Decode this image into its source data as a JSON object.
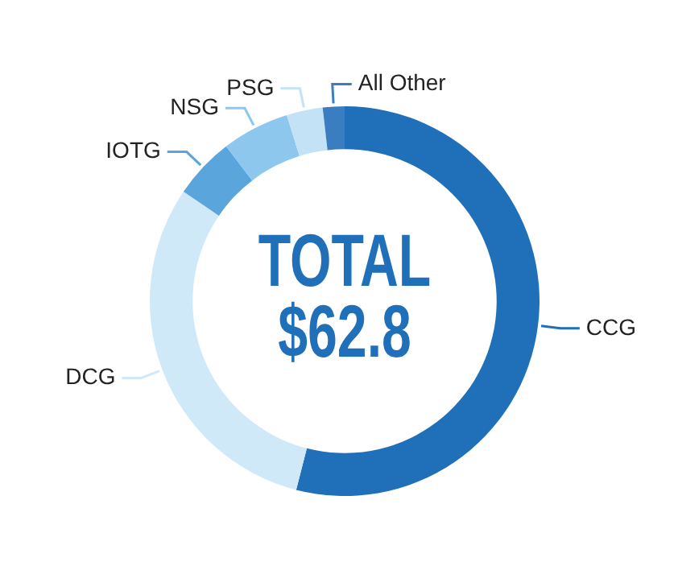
{
  "chart_data": {
    "type": "donut",
    "categories": [
      "CCG",
      "DCG",
      "IOTG",
      "NSG",
      "PSG",
      "All Other"
    ],
    "values": [
      54,
      30.5,
      5.1,
      5.6,
      3,
      1.8
    ],
    "colors": [
      "#1f70b9",
      "#cfe9f8",
      "#5aa6dc",
      "#8ec7ee",
      "#c3e2f6",
      "#3b7dc1"
    ],
    "annotations": [
      "TOTAL",
      "$62.8"
    ],
    "legend": false
  }
}
